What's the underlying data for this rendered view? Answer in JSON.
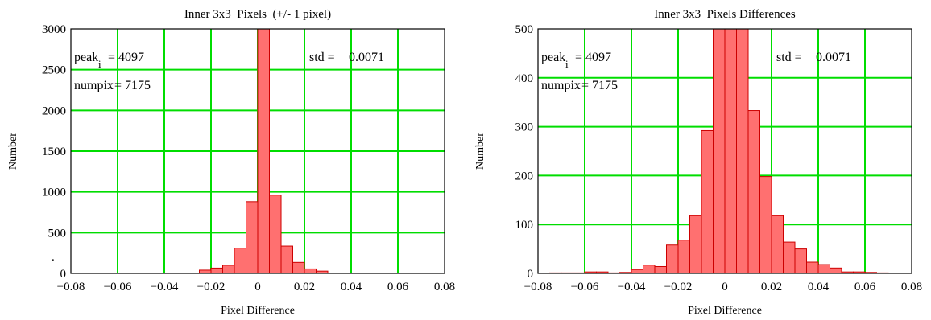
{
  "chart_data": [
    {
      "type": "bar",
      "title": "Inner 3x3  Pixels  (+/- 1 pixel)",
      "xlabel": "Pixel Difference",
      "ylabel": "Number",
      "xlim": [
        -0.08,
        0.08
      ],
      "ylim": [
        0,
        3000
      ],
      "xticks": [
        -0.08,
        -0.06,
        -0.04,
        -0.02,
        0,
        0.02,
        0.04,
        0.06,
        0.08
      ],
      "xtick_labels": [
        "−0.08",
        "−0.06",
        "−0.04",
        "−0.02",
        "0",
        "0.02",
        "0.04",
        "0.06",
        "0.08"
      ],
      "yticks": [
        0,
        500,
        1000,
        1500,
        2000,
        2500,
        3000
      ],
      "ytick_labels": [
        "0",
        "500",
        "1000",
        "1500",
        "2000",
        "2500",
        "3000"
      ],
      "grid": true,
      "bar_width": 0.005,
      "bar_color": "#ff7070",
      "bar_edge": "#cc0000",
      "grid_color": "#00dd00",
      "bins": [
        -0.025,
        -0.02,
        -0.015,
        -0.01,
        -0.005,
        0,
        0.005,
        0.01,
        0.015,
        0.02,
        0.025
      ],
      "values": [
        40,
        65,
        100,
        310,
        880,
        3000,
        960,
        335,
        135,
        55,
        28
      ],
      "annotations": {
        "peak_label": "peak",
        "peak_sub": "i",
        "peak_value": "= 4097",
        "std_label": "std = ",
        "std_value": "0.0071",
        "numpix_label": "numpix",
        "numpix_value": "= 7175"
      },
      "stray_mark": "."
    },
    {
      "type": "bar",
      "title": "Inner 3x3  Pixels Differences",
      "xlabel": "Pixel Difference",
      "ylabel": "Number",
      "xlim": [
        -0.08,
        0.08
      ],
      "ylim": [
        0,
        500
      ],
      "xticks": [
        -0.08,
        -0.06,
        -0.04,
        -0.02,
        0,
        0.02,
        0.04,
        0.06,
        0.08
      ],
      "xtick_labels": [
        "−0.08",
        "−0.06",
        "−0.04",
        "−0.02",
        "0",
        "0.02",
        "0.04",
        "0.06",
        "0.08"
      ],
      "yticks": [
        0,
        100,
        200,
        300,
        400,
        500
      ],
      "ytick_labels": [
        "0",
        "100",
        "200",
        "300",
        "400",
        "500"
      ],
      "grid": true,
      "bar_width": 0.005,
      "bar_color": "#ff7070",
      "bar_edge": "#cc0000",
      "grid_color": "#00dd00",
      "bins": [
        -0.075,
        -0.07,
        -0.065,
        -0.06,
        -0.055,
        -0.05,
        -0.045,
        -0.04,
        -0.035,
        -0.03,
        -0.025,
        -0.02,
        -0.015,
        -0.01,
        -0.005,
        0,
        0.005,
        0.01,
        0.015,
        0.02,
        0.025,
        0.03,
        0.035,
        0.04,
        0.045,
        0.05,
        0.055,
        0.06,
        0.065
      ],
      "values": [
        1,
        1,
        1,
        3,
        3,
        1,
        2,
        8,
        17,
        14,
        58,
        68,
        118,
        292,
        500,
        500,
        500,
        333,
        198,
        118,
        64,
        50,
        23,
        18,
        11,
        3,
        3,
        2,
        1
      ],
      "annotations": {
        "peak_label": "peak",
        "peak_sub": "i",
        "peak_value": "= 4097",
        "std_label": "std = ",
        "std_value": "0.0071",
        "numpix_label": "numpix",
        "numpix_value": "= 7175"
      }
    }
  ]
}
